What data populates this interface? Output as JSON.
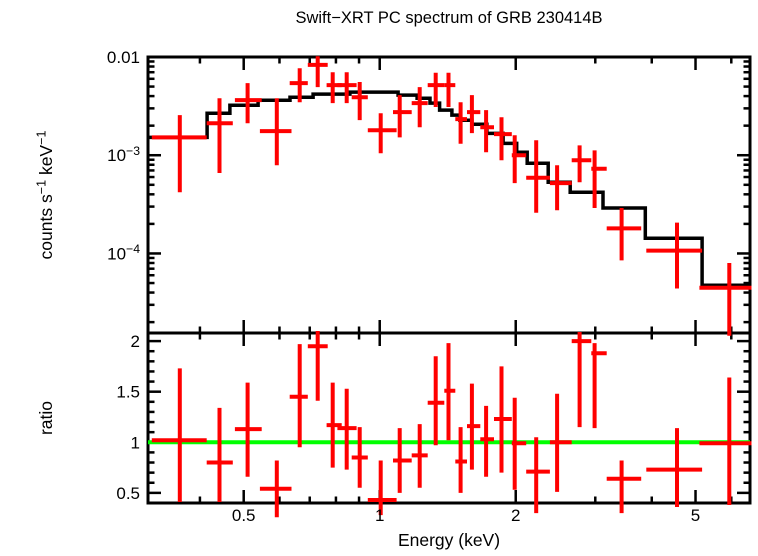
{
  "title": "Swift−XRT PC spectrum of GRB 230414B",
  "colors": {
    "background": "#ffffff",
    "data": "#ff0000",
    "model": "#000000",
    "frame": "#000000",
    "reference_line": "#00ff00",
    "text": "#000000"
  },
  "chart_data": [
    {
      "type": "scatter",
      "panel": "spectrum",
      "title": "Swift−XRT PC spectrum of GRB 230414B",
      "xlabel": "Energy (keV)",
      "ylabel": "counts s⁻¹ keV⁻¹",
      "ylabel_parts": [
        {
          "t": "counts s"
        },
        {
          "t": "−1",
          "sup": true
        },
        {
          "t": " keV"
        },
        {
          "t": "−1",
          "sup": true
        }
      ],
      "xscale": "log",
      "yscale": "log",
      "xlim": [
        0.307,
        6.6
      ],
      "ylim": [
        1.55e-05,
        0.01
      ],
      "grid": false,
      "legend": "none",
      "x_major_ticks": [
        0.5,
        1,
        2,
        5
      ],
      "x_tick_labels": [
        "0.5",
        "1",
        "2",
        "5"
      ],
      "x_minor_ticks": [
        0.4,
        0.6,
        0.7,
        0.8,
        0.9,
        3,
        4,
        6
      ],
      "y_major_ticks": [
        0.01,
        0.001,
        0.0001
      ],
      "y_tick_labels": [
        {
          "b": "0.01",
          "s": ""
        },
        {
          "b": "10",
          "s": "−3"
        },
        {
          "b": "10",
          "s": "−4"
        }
      ],
      "series": [
        {
          "name": "PC mode data (red crosses, [E, E_lo, E_hi, rate, rate_lo, rate_hi])",
          "points": [
            [
              0.361,
              0.313,
              0.414,
              0.00152,
              0.00042,
              0.00256
            ],
            [
              0.442,
              0.414,
              0.473,
              0.00212,
              0.00066,
              0.0038
            ],
            [
              0.51,
              0.478,
              0.548,
              0.00364,
              0.00212,
              0.00543
            ],
            [
              0.592,
              0.543,
              0.638,
              0.00176,
              0.00079,
              0.0038
            ],
            [
              0.665,
              0.632,
              0.693,
              0.00543,
              0.00347,
              0.0077
            ],
            [
              0.729,
              0.693,
              0.767,
              0.0083,
              0.00494,
              0.0102
            ],
            [
              0.787,
              0.763,
              0.824,
              0.00518,
              0.00339,
              0.007
            ],
            [
              0.845,
              0.806,
              0.889,
              0.00518,
              0.00339,
              0.007
            ],
            [
              0.903,
              0.867,
              0.941,
              0.0039,
              0.00228,
              0.00556
            ],
            [
              1.005,
              0.941,
              1.09,
              0.0018,
              0.00105,
              0.00268
            ],
            [
              1.107,
              1.07,
              1.177,
              0.00275,
              0.00152,
              0.00409
            ],
            [
              1.226,
              1.177,
              1.277,
              0.00339,
              0.00193,
              0.00494
            ],
            [
              1.33,
              1.277,
              1.39,
              0.00518,
              0.0031,
              0.0069
            ],
            [
              1.42,
              1.39,
              1.47,
              0.00518,
              0.0031,
              0.0069
            ],
            [
              1.51,
              1.47,
              1.56,
              0.00233,
              0.00131,
              0.00347
            ],
            [
              1.6,
              1.56,
              1.67,
              0.00275,
              0.00168,
              0.00409
            ],
            [
              1.72,
              1.67,
              1.79,
              0.00193,
              0.00107,
              0.00288
            ],
            [
              1.86,
              1.79,
              1.96,
              0.00164,
              0.00089,
              0.00244
            ],
            [
              1.99,
              1.96,
              2.11,
              0.001,
              0.00052,
              0.0016
            ],
            [
              2.22,
              2.11,
              2.38,
              0.00059,
              0.00026,
              0.00142
            ],
            [
              2.47,
              2.38,
              2.66,
              0.00052,
              0.000275,
              0.00079
            ],
            [
              2.77,
              2.66,
              2.94,
              0.00089,
              0.00053,
              0.00126
            ],
            [
              2.99,
              2.94,
              3.18,
              0.00073,
              0.00029,
              0.00112
            ],
            [
              3.43,
              3.18,
              3.79,
              0.00018,
              8.5e-05,
              0.00029
            ],
            [
              4.55,
              3.89,
              5.17,
              0.000107,
              4.4e-05,
              0.000206
            ],
            [
              5.94,
              5.1,
              6.65,
              4.47e-05,
              1.45e-05,
              8e-05
            ]
          ]
        },
        {
          "name": "Folded model (black step line, [E_start, E_end, value])",
          "steps": [
            [
              0.307,
              0.415,
              0.00152
            ],
            [
              0.415,
              0.466,
              0.00268
            ],
            [
              0.466,
              0.538,
              0.00323
            ],
            [
              0.538,
              0.633,
              0.00363
            ],
            [
              0.633,
              0.712,
              0.0039
            ],
            [
              0.712,
              0.859,
              0.00419
            ],
            [
              0.859,
              1.098,
              0.00439
            ],
            [
              1.098,
              1.21,
              0.00409
            ],
            [
              1.21,
              1.292,
              0.00381
            ],
            [
              1.292,
              1.357,
              0.00339
            ],
            [
              1.357,
              1.445,
              0.00288
            ],
            [
              1.445,
              1.505,
              0.00256
            ],
            [
              1.505,
              1.6,
              0.00227
            ],
            [
              1.6,
              1.727,
              0.00207
            ],
            [
              1.727,
              1.875,
              0.00167
            ],
            [
              1.875,
              2.01,
              0.00132
            ],
            [
              2.01,
              2.12,
              0.00107
            ],
            [
              2.12,
              2.36,
              0.00083
            ],
            [
              2.36,
              2.64,
              0.00053
            ],
            [
              2.64,
              3.12,
              0.00042
            ],
            [
              3.12,
              3.87,
              0.00029
            ],
            [
              3.87,
              5.17,
              0.000143
            ],
            [
              5.17,
              6.6,
              4.75e-05
            ]
          ]
        }
      ]
    },
    {
      "type": "scatter",
      "panel": "ratio",
      "xlabel": "Energy (keV)",
      "ylabel": "ratio",
      "ylabel_parts": [
        {
          "t": "ratio"
        }
      ],
      "xscale": "log",
      "yscale": "linear",
      "xlim": [
        0.307,
        6.6
      ],
      "ylim": [
        0.4,
        2.08
      ],
      "grid": false,
      "reference_line_y": 1,
      "y_major_ticks": [
        0.5,
        1,
        1.5,
        2
      ],
      "y_tick_labels": [
        {
          "b": "0.5",
          "s": ""
        },
        {
          "b": "1",
          "s": ""
        },
        {
          "b": "1.5",
          "s": ""
        },
        {
          "b": "2",
          "s": ""
        }
      ],
      "y_minor_ticks": [
        0.6,
        0.7,
        0.8,
        0.9,
        1.1,
        1.2,
        1.3,
        1.4,
        1.6,
        1.7,
        1.8,
        1.9
      ],
      "series": [
        {
          "name": "data/model ratio (red crosses, [E, E_lo, E_hi, ratio, ratio_lo, ratio_hi])",
          "points": [
            [
              0.361,
              0.313,
              0.414,
              1.02,
              0.41,
              1.73
            ],
            [
              0.442,
              0.414,
              0.473,
              0.8,
              0.41,
              1.34
            ],
            [
              0.51,
              0.478,
              0.548,
              1.13,
              0.66,
              1.59
            ],
            [
              0.592,
              0.543,
              0.638,
              0.54,
              0.26,
              0.82
            ],
            [
              0.665,
              0.632,
              0.693,
              1.45,
              0.95,
              1.97
            ],
            [
              0.729,
              0.693,
              0.767,
              1.95,
              1.41,
              2.1
            ],
            [
              0.787,
              0.763,
              0.824,
              1.17,
              0.75,
              1.59
            ],
            [
              0.845,
              0.806,
              0.889,
              1.14,
              0.73,
              1.53
            ],
            [
              0.903,
              0.867,
              0.941,
              0.85,
              0.55,
              1.15
            ],
            [
              1.005,
              0.941,
              1.09,
              0.43,
              0.28,
              0.82
            ],
            [
              1.107,
              1.07,
              1.177,
              0.82,
              0.5,
              1.14
            ],
            [
              1.226,
              1.177,
              1.277,
              0.87,
              0.55,
              1.18
            ],
            [
              1.33,
              1.277,
              1.39,
              1.39,
              0.97,
              1.85
            ],
            [
              1.42,
              1.39,
              1.47,
              1.51,
              1.02,
              1.98
            ],
            [
              1.51,
              1.47,
              1.56,
              0.81,
              0.5,
              1.15
            ],
            [
              1.6,
              1.56,
              1.67,
              1.16,
              0.73,
              1.58
            ],
            [
              1.72,
              1.67,
              1.79,
              1.03,
              0.66,
              1.36
            ],
            [
              1.86,
              1.79,
              1.96,
              1.23,
              0.7,
              1.75
            ],
            [
              1.99,
              1.96,
              2.11,
              0.99,
              0.53,
              1.44
            ],
            [
              2.22,
              2.11,
              2.38,
              0.71,
              0.3,
              1.05
            ],
            [
              2.47,
              2.38,
              2.66,
              1.0,
              0.51,
              1.48
            ],
            [
              2.77,
              2.66,
              2.94,
              2.0,
              1.15,
              2.09
            ],
            [
              2.99,
              2.94,
              3.18,
              1.88,
              1.14,
              1.98
            ],
            [
              3.43,
              3.18,
              3.79,
              0.64,
              0.3,
              0.82
            ],
            [
              4.55,
              3.89,
              5.17,
              0.73,
              0.36,
              1.14
            ],
            [
              5.94,
              5.1,
              6.65,
              0.99,
              0.38,
              1.64
            ]
          ]
        }
      ]
    }
  ]
}
